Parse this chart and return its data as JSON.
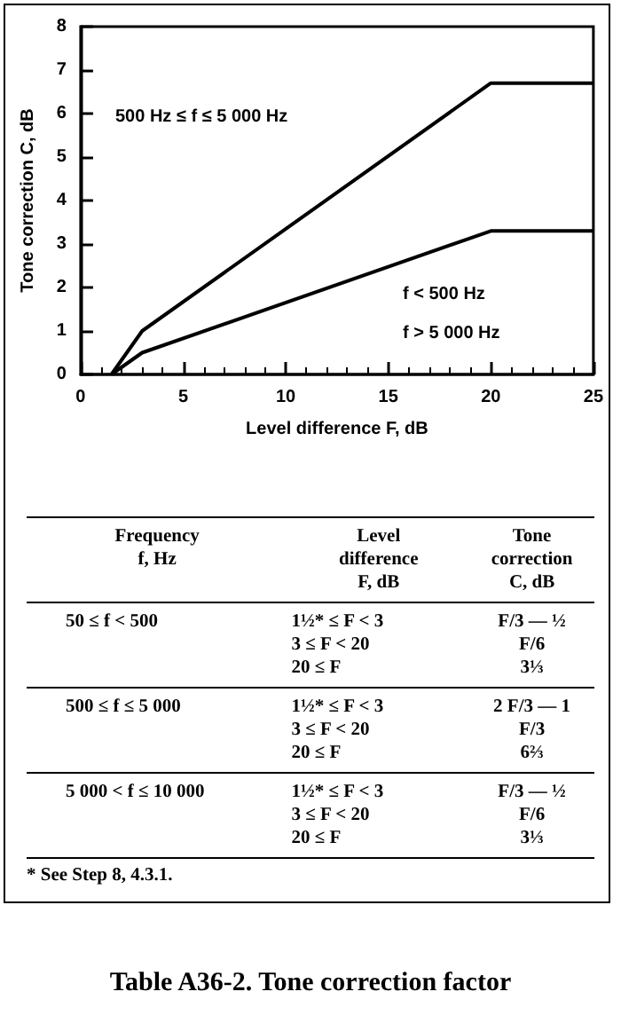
{
  "chart_data": {
    "type": "line",
    "title": "Table A36-2. Tone correction factor",
    "xlabel": "Level difference F, dB",
    "ylabel": "Tone correction C, dB",
    "series": [
      {
        "color": "#000000",
        "x": [
          1.5,
          3,
          20,
          25
        ],
        "values": [
          0,
          1,
          6.7,
          6.7
        ]
      },
      {
        "color": "#000000",
        "x": [
          1.5,
          3,
          20,
          25
        ],
        "values": [
          0,
          0.5,
          3.3,
          3.3
        ]
      }
    ],
    "xlim": [
      0,
      25
    ],
    "xticks": [
      0,
      5,
      10,
      15,
      20,
      25
    ],
    "ylim": [
      0,
      8
    ],
    "yticks": [
      0,
      1,
      2,
      3,
      4,
      5,
      6,
      7,
      8
    ],
    "grid": false,
    "marker": "none",
    "line_style": "solid",
    "annotations": [
      "500 Hz ≤ f ≤ 5 000 Hz",
      "f < 500 Hz",
      "f > 5 000 Hz",
      "Frequency\nf, Hz",
      "Level\ndifference\nF, dB",
      "Tone\ncorrection\nC, dB",
      "50 ≤ f < 500",
      "1½* ≤ F < 3\n3 ≤ F < 20\n20 ≤ F",
      "F/3 — ½\nF/6\n3⅓",
      "500 ≤ f ≤ 5 000",
      "1½* ≤ F < 3\n3 ≤ F < 20\n20 ≤ F",
      "2 F/3 — 1\nF/3\n6⅔",
      "5 000 < f ≤ 10 000",
      "1½* ≤ F < 3\n3 ≤ F < 20\n20 ≤ F",
      "F/3 — ½\nF/6\n3⅓",
      "* See Step 8, 4.3.1."
    ]
  }
}
